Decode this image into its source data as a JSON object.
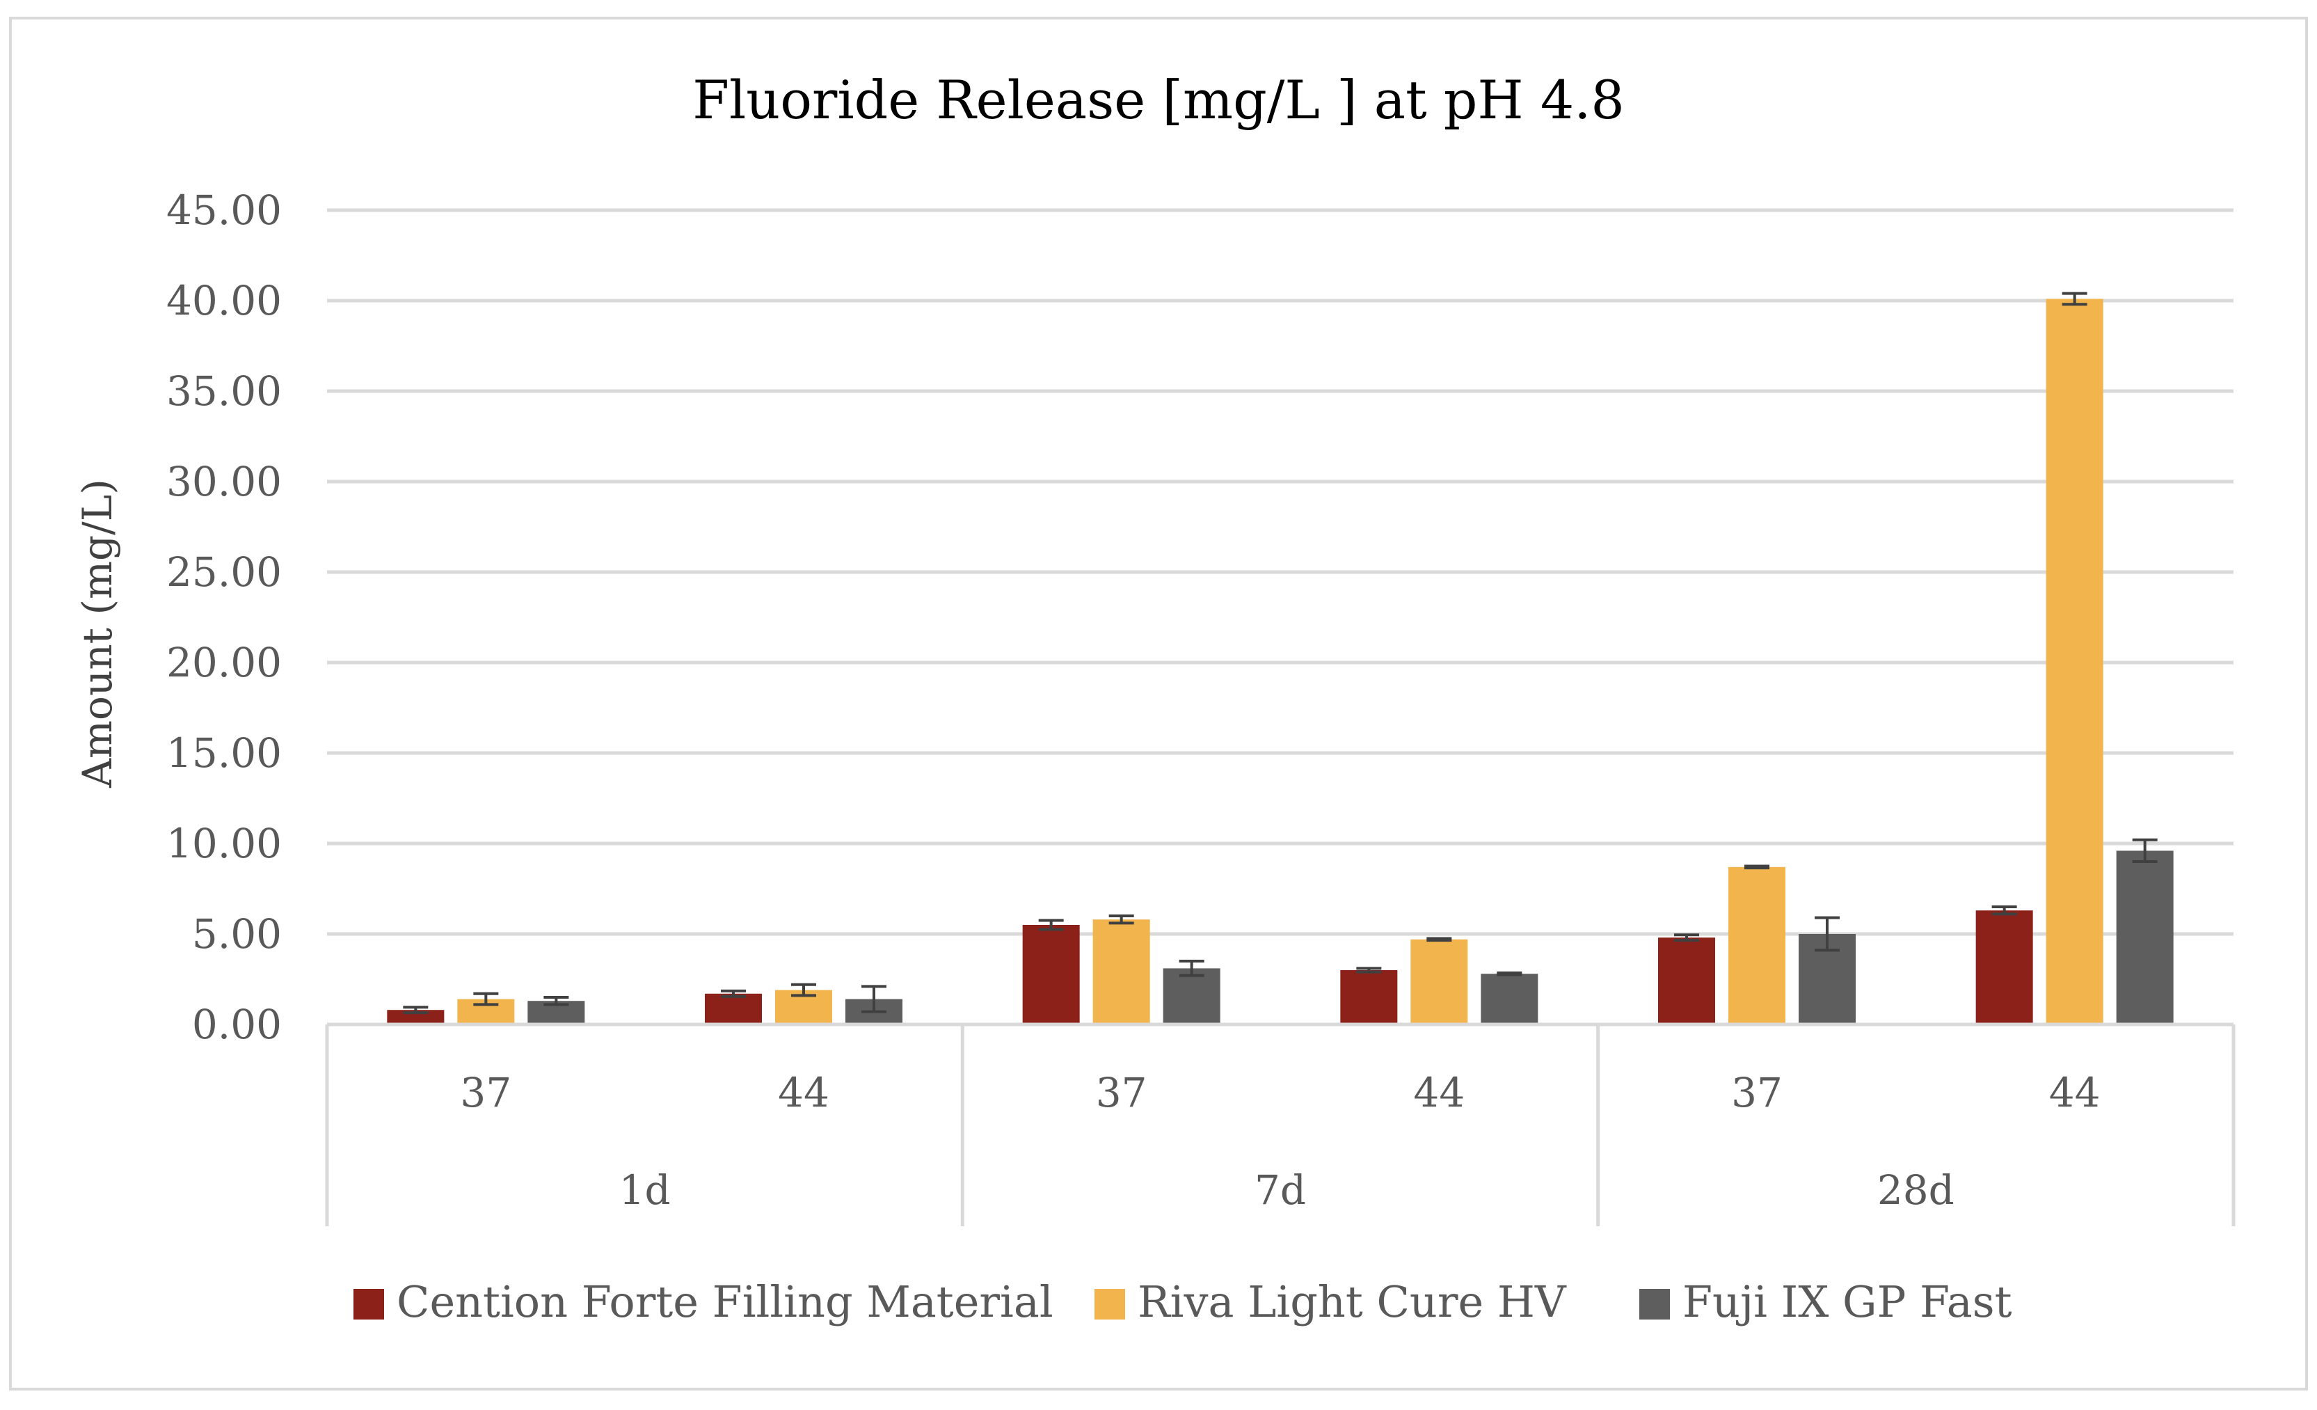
{
  "chart_data": {
    "type": "bar",
    "title": "Fluoride Release [mg/L ] at pH 4.8",
    "ylabel": "Amount (mg/L)",
    "xlabel": "",
    "ylim": [
      0,
      45
    ],
    "y_ticks": [
      "0.00",
      "5.00",
      "10.00",
      "15.00",
      "20.00",
      "25.00",
      "30.00",
      "35.00",
      "40.00",
      "45.00"
    ],
    "y_tick_values": [
      0,
      5,
      10,
      15,
      20,
      25,
      30,
      35,
      40,
      45
    ],
    "grid": true,
    "legend_position": "bottom",
    "groups": [
      {
        "label": "1d",
        "subcategories": [
          "37",
          "44"
        ]
      },
      {
        "label": "7d",
        "subcategories": [
          "37",
          "44"
        ]
      },
      {
        "label": "28d",
        "subcategories": [
          "37",
          "44"
        ]
      }
    ],
    "series": [
      {
        "name": "Cention Forte Filling Material",
        "color": "#8B2119",
        "values": [
          0.8,
          1.7,
          5.5,
          3.0,
          4.8,
          6.3
        ],
        "errors": [
          0.15,
          0.15,
          0.25,
          0.1,
          0.15,
          0.2
        ]
      },
      {
        "name": "Riva Light Cure HV",
        "color": "#F2B44D",
        "values": [
          1.4,
          1.9,
          5.8,
          4.7,
          8.7,
          40.1
        ],
        "errors": [
          0.3,
          0.3,
          0.2,
          0.05,
          0.05,
          0.3
        ]
      },
      {
        "name": "Fuji IX GP Fast",
        "color": "#5E5E5E",
        "values": [
          1.3,
          1.4,
          3.1,
          2.8,
          5.0,
          9.6
        ],
        "errors": [
          0.2,
          0.7,
          0.4,
          0.05,
          0.9,
          0.6
        ]
      }
    ]
  }
}
